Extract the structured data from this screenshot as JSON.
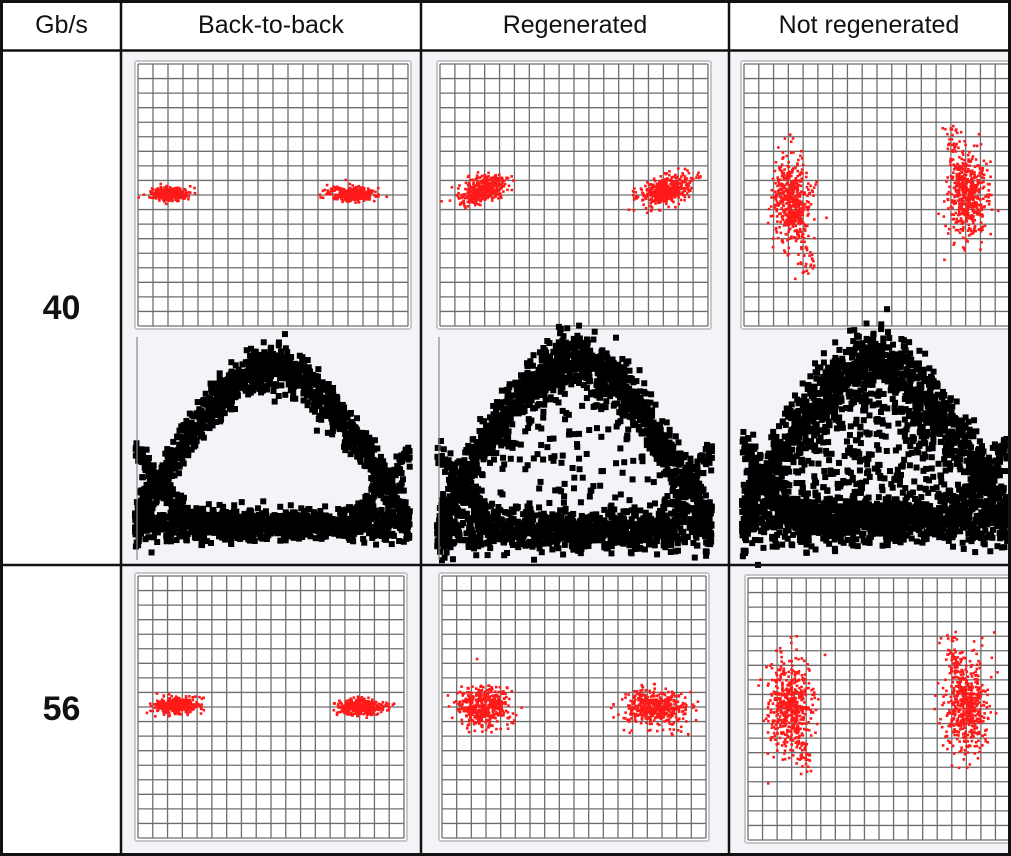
{
  "table": {
    "corner_label": "Gb/s",
    "columns": [
      "Back-to-back",
      "Regenerated",
      "Not regenerated"
    ],
    "rows": [
      {
        "label": "40",
        "panels": [
          "constellation",
          "eye-diagram"
        ]
      },
      {
        "label": "56",
        "panels": [
          "constellation"
        ]
      }
    ]
  },
  "colors": {
    "constellation_points": "#ff1a1a",
    "eye_trace": "#000000",
    "grid_line": "#6e6e6e",
    "frame_border": "#c8c8c8",
    "panel_background": "#f2f4f8",
    "table_border": "#111111"
  }
}
